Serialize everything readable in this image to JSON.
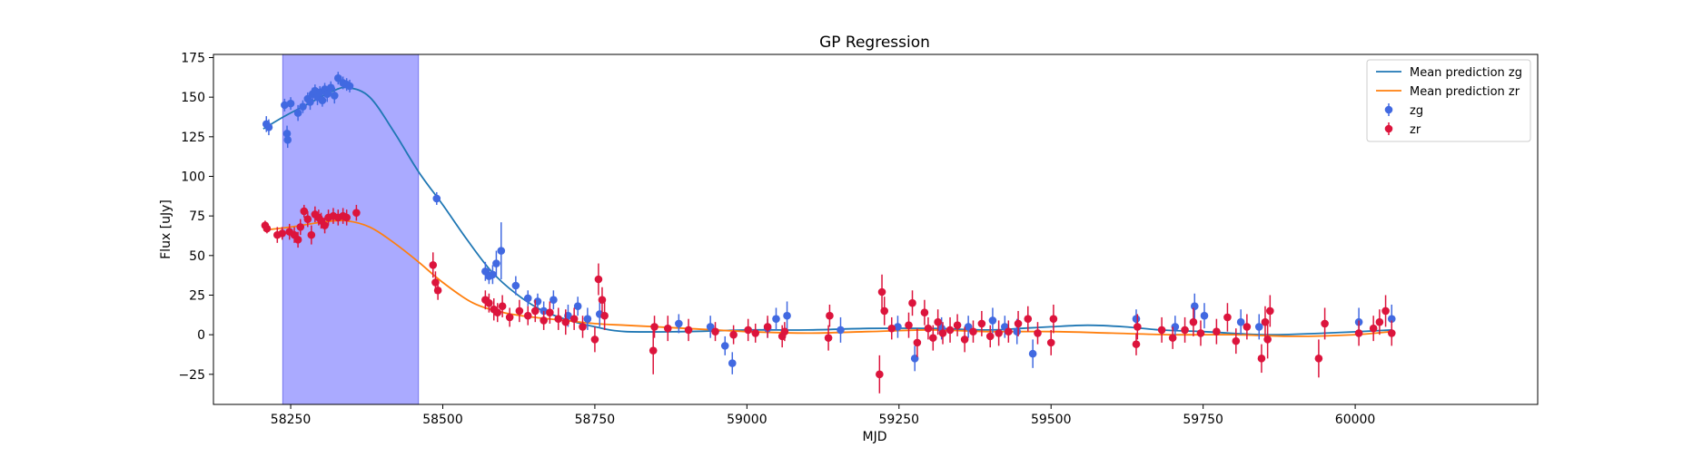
{
  "chart_data": {
    "type": "scatter",
    "title": "GP Regression",
    "xlabel": "MJD",
    "ylabel": "Flux [uJy]",
    "xlim": [
      58123,
      60300
    ],
    "ylim": [
      -44,
      177
    ],
    "xticks": [
      58250,
      58500,
      58750,
      59000,
      59250,
      59500,
      59750,
      60000
    ],
    "yticks": [
      -25,
      0,
      25,
      50,
      75,
      100,
      125,
      150,
      175
    ],
    "grid": false,
    "legend_position": "top-right",
    "shaded_region": {
      "x_start": 58237,
      "x_end": 58460,
      "color": "#aaaaff"
    },
    "legend": [
      {
        "label": "Mean prediction zg",
        "kind": "line",
        "color": "#1f77b4"
      },
      {
        "label": "Mean prediction zr",
        "kind": "line",
        "color": "#ff7f0e"
      },
      {
        "label": "zg",
        "kind": "errorbar",
        "color": "#4169e1"
      },
      {
        "label": "zr",
        "kind": "errorbar",
        "color": "#dc143c"
      }
    ],
    "series": [
      {
        "name": "Mean prediction zg",
        "kind": "line",
        "color": "#1f77b4",
        "x": [
          58205,
          58240,
          58280,
          58320,
          58345,
          58380,
          58420,
          58460,
          58500,
          58540,
          58580,
          58620,
          58660,
          58700,
          58750,
          58800,
          58900,
          59000,
          59100,
          59200,
          59300,
          59400,
          59450,
          59500,
          59560,
          59620,
          59680,
          59750,
          59850,
          59950,
          60060
        ],
        "y": [
          130,
          138,
          146,
          154,
          156,
          150,
          128,
          103,
          82,
          60,
          40,
          26,
          16,
          10,
          5,
          2,
          2,
          3,
          3,
          4,
          4,
          3,
          4,
          5,
          6,
          5,
          3,
          2,
          0,
          1,
          3
        ]
      },
      {
        "name": "Mean prediction zr",
        "kind": "line",
        "color": "#ff7f0e",
        "x": [
          58205,
          58250,
          58300,
          58340,
          58380,
          58420,
          58460,
          58500,
          58550,
          58600,
          58650,
          58700,
          58750,
          58800,
          58850,
          58900,
          59000,
          59100,
          59200,
          59300,
          59400,
          59500,
          59600,
          59700,
          59800,
          59900,
          60000,
          60060
        ],
        "y": [
          66,
          68,
          71,
          72,
          68,
          58,
          46,
          33,
          20,
          14,
          11,
          9,
          7,
          6,
          5,
          4,
          2,
          1,
          2,
          3,
          2,
          2,
          1,
          0,
          0,
          -1,
          0,
          2
        ]
      },
      {
        "name": "zg",
        "kind": "errorbar",
        "color": "#4169e1",
        "x": [
          58210,
          58214,
          58240,
          58244,
          58245,
          58250,
          58262,
          58270,
          58278,
          58282,
          58286,
          58290,
          58294,
          58298,
          58302,
          58306,
          58310,
          58316,
          58322,
          58328,
          58336,
          58342,
          58347,
          58490,
          58570,
          58576,
          58582,
          58588,
          58596,
          58620,
          58640,
          58656,
          58666,
          58682,
          58706,
          58722,
          58738,
          58758,
          58888,
          58940,
          58964,
          58976,
          59034,
          59048,
          59066,
          59154,
          59248,
          59276,
          59320,
          59364,
          59404,
          59424,
          59444,
          59470,
          59640,
          59704,
          59736,
          59752,
          59812,
          59842,
          60006,
          60060
        ],
        "y": [
          133,
          131,
          145,
          127,
          123,
          146,
          140,
          144,
          149,
          147,
          152,
          154,
          150,
          153,
          148,
          155,
          152,
          156,
          151,
          162,
          159,
          158,
          157,
          86,
          40,
          37,
          38,
          45,
          53,
          31,
          23,
          21,
          15,
          22,
          12,
          18,
          10,
          13,
          7,
          5,
          -7,
          -18,
          4,
          10,
          12,
          3,
          5,
          -15,
          4,
          5,
          9,
          5,
          2,
          -12,
          10,
          5,
          18,
          12,
          8,
          5,
          8,
          10
        ],
        "err": [
          5,
          5,
          4,
          5,
          5,
          4,
          5,
          4,
          4,
          5,
          4,
          4,
          5,
          4,
          4,
          4,
          5,
          4,
          5,
          4,
          4,
          4,
          4,
          4,
          6,
          5,
          6,
          8,
          18,
          6,
          5,
          5,
          6,
          6,
          7,
          6,
          7,
          8,
          6,
          7,
          6,
          7,
          6,
          7,
          9,
          8,
          7,
          8,
          7,
          7,
          8,
          7,
          8,
          9,
          6,
          7,
          8,
          8,
          8,
          8,
          9,
          9
        ]
      },
      {
        "name": "zr",
        "kind": "errorbar",
        "color": "#dc143c",
        "x": [
          58208,
          58211,
          58228,
          58236,
          58248,
          58256,
          58262,
          58266,
          58272,
          58278,
          58284,
          58290,
          58296,
          58300,
          58306,
          58312,
          58320,
          58328,
          58336,
          58342,
          58358,
          58484,
          58488,
          58492,
          58570,
          58576,
          58584,
          58590,
          58598,
          58610,
          58626,
          58640,
          58652,
          58666,
          58676,
          58690,
          58702,
          58716,
          58730,
          58750,
          58756,
          58762,
          58766,
          58846,
          58848,
          58870,
          58904,
          58948,
          58978,
          59002,
          59014,
          59034,
          59058,
          59062,
          59134,
          59136,
          59218,
          59222,
          59226,
          59238,
          59266,
          59272,
          59280,
          59292,
          59298,
          59306,
          59314,
          59322,
          59334,
          59346,
          59358,
          59372,
          59386,
          59400,
          59414,
          59430,
          59446,
          59462,
          59478,
          59500,
          59504,
          59640,
          59642,
          59682,
          59700,
          59720,
          59734,
          59746,
          59772,
          59790,
          59804,
          59822,
          59846,
          59852,
          59856,
          59860,
          59940,
          59950,
          60006,
          60030,
          60040,
          60050,
          60060
        ],
        "y": [
          69,
          67,
          63,
          64,
          65,
          63,
          60,
          68,
          78,
          73,
          63,
          76,
          74,
          72,
          69,
          74,
          75,
          74,
          75,
          74,
          77,
          44,
          33,
          28,
          22,
          20,
          16,
          14,
          18,
          11,
          15,
          12,
          15,
          9,
          14,
          10,
          8,
          10,
          5,
          -3,
          35,
          22,
          12,
          -10,
          5,
          4,
          3,
          2,
          0,
          3,
          1,
          5,
          -1,
          2,
          -2,
          12,
          -25,
          27,
          15,
          4,
          6,
          20,
          -5,
          14,
          4,
          -2,
          8,
          1,
          3,
          6,
          -3,
          2,
          7,
          -1,
          1,
          2,
          7,
          10,
          1,
          -5,
          10,
          -6,
          5,
          3,
          -2,
          3,
          8,
          1,
          2,
          11,
          -4,
          5,
          -15,
          8,
          -3,
          15,
          -15,
          7,
          1,
          4,
          8,
          15,
          1
        ],
        "err": [
          3,
          3,
          5,
          4,
          5,
          5,
          5,
          5,
          4,
          5,
          6,
          5,
          5,
          5,
          5,
          5,
          5,
          5,
          5,
          5,
          5,
          8,
          7,
          6,
          6,
          6,
          7,
          6,
          7,
          6,
          7,
          6,
          7,
          6,
          7,
          7,
          8,
          7,
          7,
          8,
          10,
          8,
          9,
          15,
          7,
          8,
          7,
          6,
          6,
          7,
          6,
          7,
          7,
          6,
          8,
          7,
          12,
          11,
          9,
          7,
          8,
          8,
          9,
          8,
          7,
          8,
          8,
          7,
          8,
          7,
          8,
          7,
          8,
          7,
          8,
          7,
          8,
          8,
          7,
          8,
          9,
          7,
          8,
          8,
          7,
          8,
          9,
          8,
          8,
          9,
          8,
          8,
          9,
          10,
          12,
          10,
          12,
          10,
          8,
          8,
          8,
          10,
          8
        ]
      }
    ]
  }
}
